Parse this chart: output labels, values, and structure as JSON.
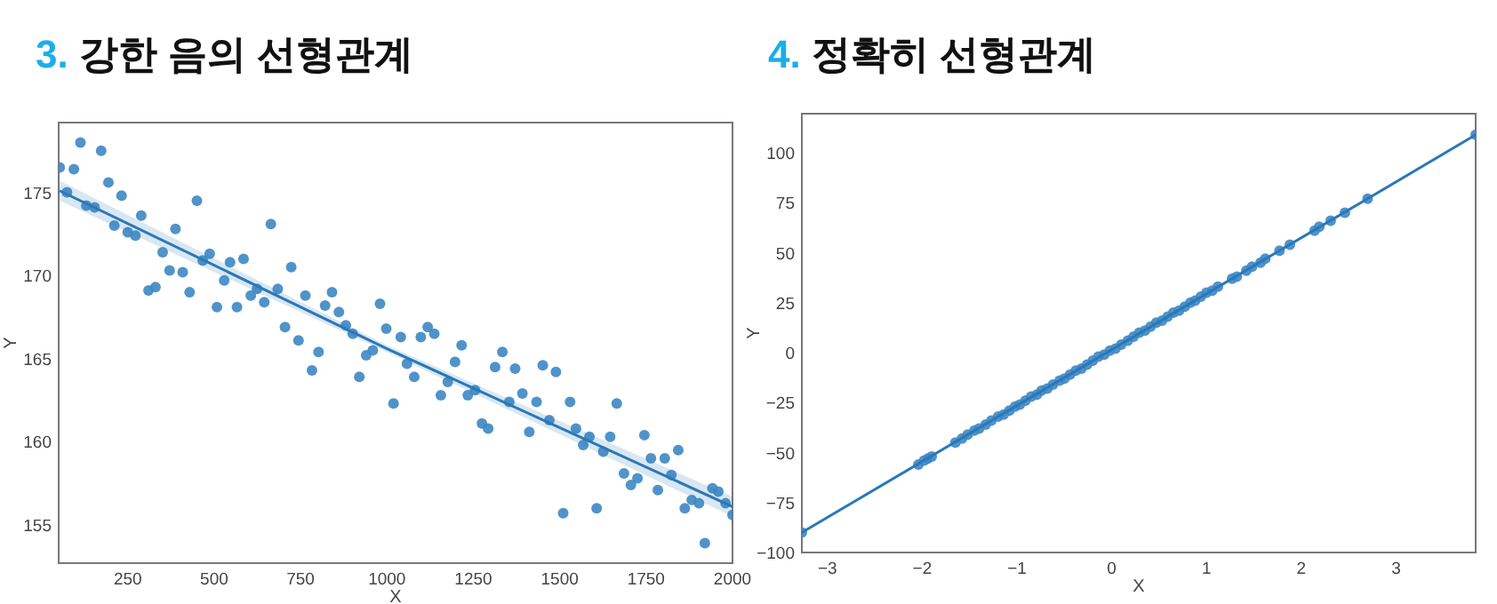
{
  "chart_data": [
    {
      "type": "scatter",
      "title": "3. 강한 음의 선형관계",
      "xlabel": "X",
      "ylabel": "Y",
      "xlim": [
        50,
        2000
      ],
      "ylim": [
        152.7,
        179.2
      ],
      "xticks": [
        250,
        500,
        750,
        1000,
        1250,
        1500,
        1750,
        2000
      ],
      "yticks": [
        155,
        160,
        165,
        170,
        175
      ],
      "grid": false,
      "series": [
        {
          "type": "scatter",
          "marker": "circle",
          "color": "#3d87c4",
          "x": [
            53,
            74,
            94,
            113,
            130,
            154,
            173,
            194,
            211,
            232,
            250,
            272,
            289,
            310,
            330,
            351,
            371,
            388,
            409,
            429,
            450,
            467,
            487,
            508,
            529,
            546,
            566,
            585,
            606,
            624,
            645,
            664,
            684,
            705,
            723,
            744,
            764,
            783,
            802,
            821,
            841,
            861,
            881,
            901,
            920,
            940,
            959,
            980,
            998,
            1019,
            1040,
            1058,
            1079,
            1098,
            1118,
            1137,
            1156,
            1176,
            1197,
            1216,
            1234,
            1255,
            1275,
            1293,
            1313,
            1334,
            1354,
            1371,
            1392,
            1412,
            1433,
            1451,
            1470,
            1489,
            1510,
            1530,
            1547,
            1568,
            1586,
            1607,
            1626,
            1646,
            1665,
            1686,
            1706,
            1725,
            1745,
            1764,
            1784,
            1804,
            1823,
            1843,
            1862,
            1882,
            1903,
            1920,
            1942,
            1959,
            1980,
            2000
          ],
          "values": [
            176.5,
            175.0,
            176.4,
            178.0,
            174.2,
            174.1,
            177.5,
            175.6,
            173.0,
            174.8,
            172.6,
            172.4,
            173.6,
            169.1,
            169.3,
            171.4,
            170.3,
            172.8,
            170.2,
            169.0,
            174.5,
            170.9,
            171.3,
            168.1,
            169.7,
            170.8,
            168.1,
            171.0,
            168.8,
            169.2,
            168.4,
            173.1,
            169.2,
            166.9,
            170.5,
            166.1,
            168.8,
            164.3,
            165.4,
            168.2,
            169.0,
            167.8,
            167.0,
            166.5,
            163.9,
            165.2,
            165.5,
            168.3,
            166.8,
            162.3,
            166.3,
            164.7,
            163.9,
            166.3,
            166.9,
            166.5,
            162.8,
            163.6,
            164.8,
            165.8,
            162.8,
            163.1,
            161.1,
            160.8,
            164.5,
            165.4,
            162.4,
            164.4,
            162.9,
            160.6,
            162.4,
            164.6,
            161.3,
            164.2,
            155.7,
            162.4,
            160.8,
            159.8,
            160.3,
            156.0,
            159.4,
            160.3,
            162.3,
            158.1,
            157.4,
            157.8,
            160.4,
            159.0,
            157.1,
            159.0,
            158.0,
            159.5,
            156.0,
            156.5,
            156.3,
            153.9,
            157.2,
            157.0,
            156.3,
            155.6
          ]
        },
        {
          "type": "line",
          "color": "#2a78b8",
          "x": [
            53,
            1000,
            2000
          ],
          "values": [
            175.1,
            165.6,
            156.1
          ],
          "lower": [
            174.5,
            165.4,
            155.5
          ],
          "upper": [
            175.7,
            165.8,
            156.7
          ]
        }
      ]
    },
    {
      "type": "scatter",
      "title": "4. 정확히 선형관계",
      "xlabel": "X",
      "ylabel": "Y",
      "xlim": [
        -3.27,
        3.84
      ],
      "ylim": [
        -100,
        119.6
      ],
      "xticks": [
        {
          "value": -3,
          "label": "−3"
        },
        {
          "value": -2,
          "label": "−2"
        },
        {
          "value": -1,
          "label": "−1"
        },
        0,
        1,
        2,
        3
      ],
      "yticks": [
        {
          "value": -100,
          "label": "−100"
        },
        {
          "value": -75,
          "label": "−75"
        },
        {
          "value": -50,
          "label": "−50"
        },
        {
          "value": -25,
          "label": "−25"
        },
        0,
        25,
        50,
        75,
        100
      ],
      "grid": false,
      "series": [
        {
          "type": "scatter",
          "marker": "circle",
          "color": "#3d87c4",
          "x": [
            -3.27,
            -2.04,
            -1.98,
            -1.94,
            -1.9,
            -1.65,
            -1.58,
            -1.52,
            -1.45,
            -1.4,
            -1.33,
            -1.27,
            -1.2,
            -1.14,
            -1.08,
            -1.02,
            -0.97,
            -0.91,
            -0.85,
            -0.79,
            -0.74,
            -0.68,
            -0.62,
            -0.55,
            -0.5,
            -0.44,
            -0.38,
            -0.32,
            -0.26,
            -0.2,
            -0.14,
            -0.08,
            -0.02,
            0.04,
            0.1,
            0.17,
            0.23,
            0.29,
            0.35,
            0.41,
            0.47,
            0.53,
            0.59,
            0.65,
            0.71,
            0.77,
            0.83,
            0.88,
            0.94,
            1.0,
            1.06,
            1.12,
            1.27,
            1.32,
            1.42,
            1.48,
            1.57,
            1.62,
            1.77,
            1.88,
            2.14,
            2.19,
            2.31,
            2.46,
            2.7,
            3.84
          ],
          "values": [
            -90,
            -56,
            -54,
            -53,
            -52,
            -45,
            -43,
            -41,
            -39,
            -38,
            -36,
            -34,
            -32,
            -31,
            -29,
            -27,
            -26,
            -24,
            -22,
            -21,
            -19,
            -18,
            -16,
            -14,
            -13,
            -11,
            -9,
            -8,
            -6,
            -4,
            -2,
            -1,
            1,
            2,
            4,
            6,
            8,
            10,
            11,
            13,
            15,
            16,
            18,
            20,
            21,
            23,
            25,
            26,
            28,
            30,
            31,
            33,
            37,
            38,
            41,
            43,
            45,
            47,
            51,
            54,
            61,
            63,
            66,
            70,
            77,
            109
          ]
        },
        {
          "type": "line",
          "color": "#2a78b8",
          "x": [
            -3.27,
            3.84
          ],
          "values": [
            -90,
            109
          ]
        }
      ]
    }
  ]
}
